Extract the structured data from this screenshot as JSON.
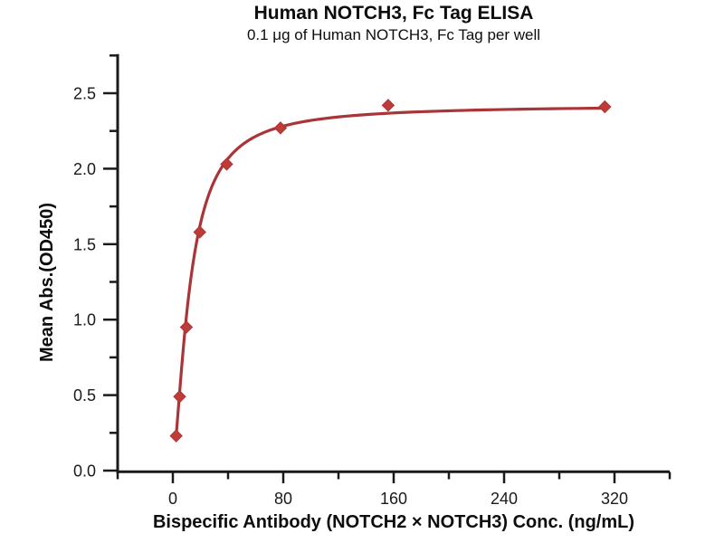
{
  "chart_data": {
    "type": "scatter",
    "title": "Human NOTCH3, Fc Tag ELISA",
    "subtitle": "0.1 μg of Human NOTCH3, Fc Tag per well",
    "xlabel": "Bispecific Antibody (NOTCH2 × NOTCH3) Conc. (ng/mL)",
    "ylabel": "Mean Abs.(OD450)",
    "x": [
      2.4,
      4.9,
      9.8,
      19.5,
      39,
      78,
      156,
      313
    ],
    "y": [
      0.23,
      0.49,
      0.95,
      1.58,
      2.03,
      2.27,
      2.42,
      2.41
    ],
    "xlim": [
      -40,
      360
    ],
    "ylim": [
      0,
      2.75
    ],
    "x_major_ticks": [
      0,
      80,
      160,
      240,
      320
    ],
    "x_tick_labels": [
      "0",
      "80",
      "160",
      "240",
      "320"
    ],
    "x_minor_ticks": [
      -40,
      40,
      120,
      200,
      280,
      360
    ],
    "y_major_ticks": [
      0,
      0.5,
      1.0,
      1.5,
      2.0,
      2.5
    ],
    "y_tick_labels": [
      "0.0",
      "0.5",
      "1.0",
      "1.5",
      "2.0",
      "2.5"
    ],
    "y_minor_ticks": [
      0.25,
      0.75,
      1.25,
      1.75,
      2.25,
      2.75
    ],
    "grid": false,
    "legend": false,
    "marker": "diamond",
    "curve_fit": {
      "model": "4PL",
      "bottom": 0.05,
      "top": 2.42,
      "ec50": 12.5,
      "hill": 1.5,
      "x_start": 2.4,
      "x_end": 313
    },
    "colors": {
      "curve": "#A93538",
      "marker_fill": "#C03A36",
      "marker_edge": "#A93538",
      "axis": "#1a1a1a",
      "text": "#111111"
    }
  }
}
